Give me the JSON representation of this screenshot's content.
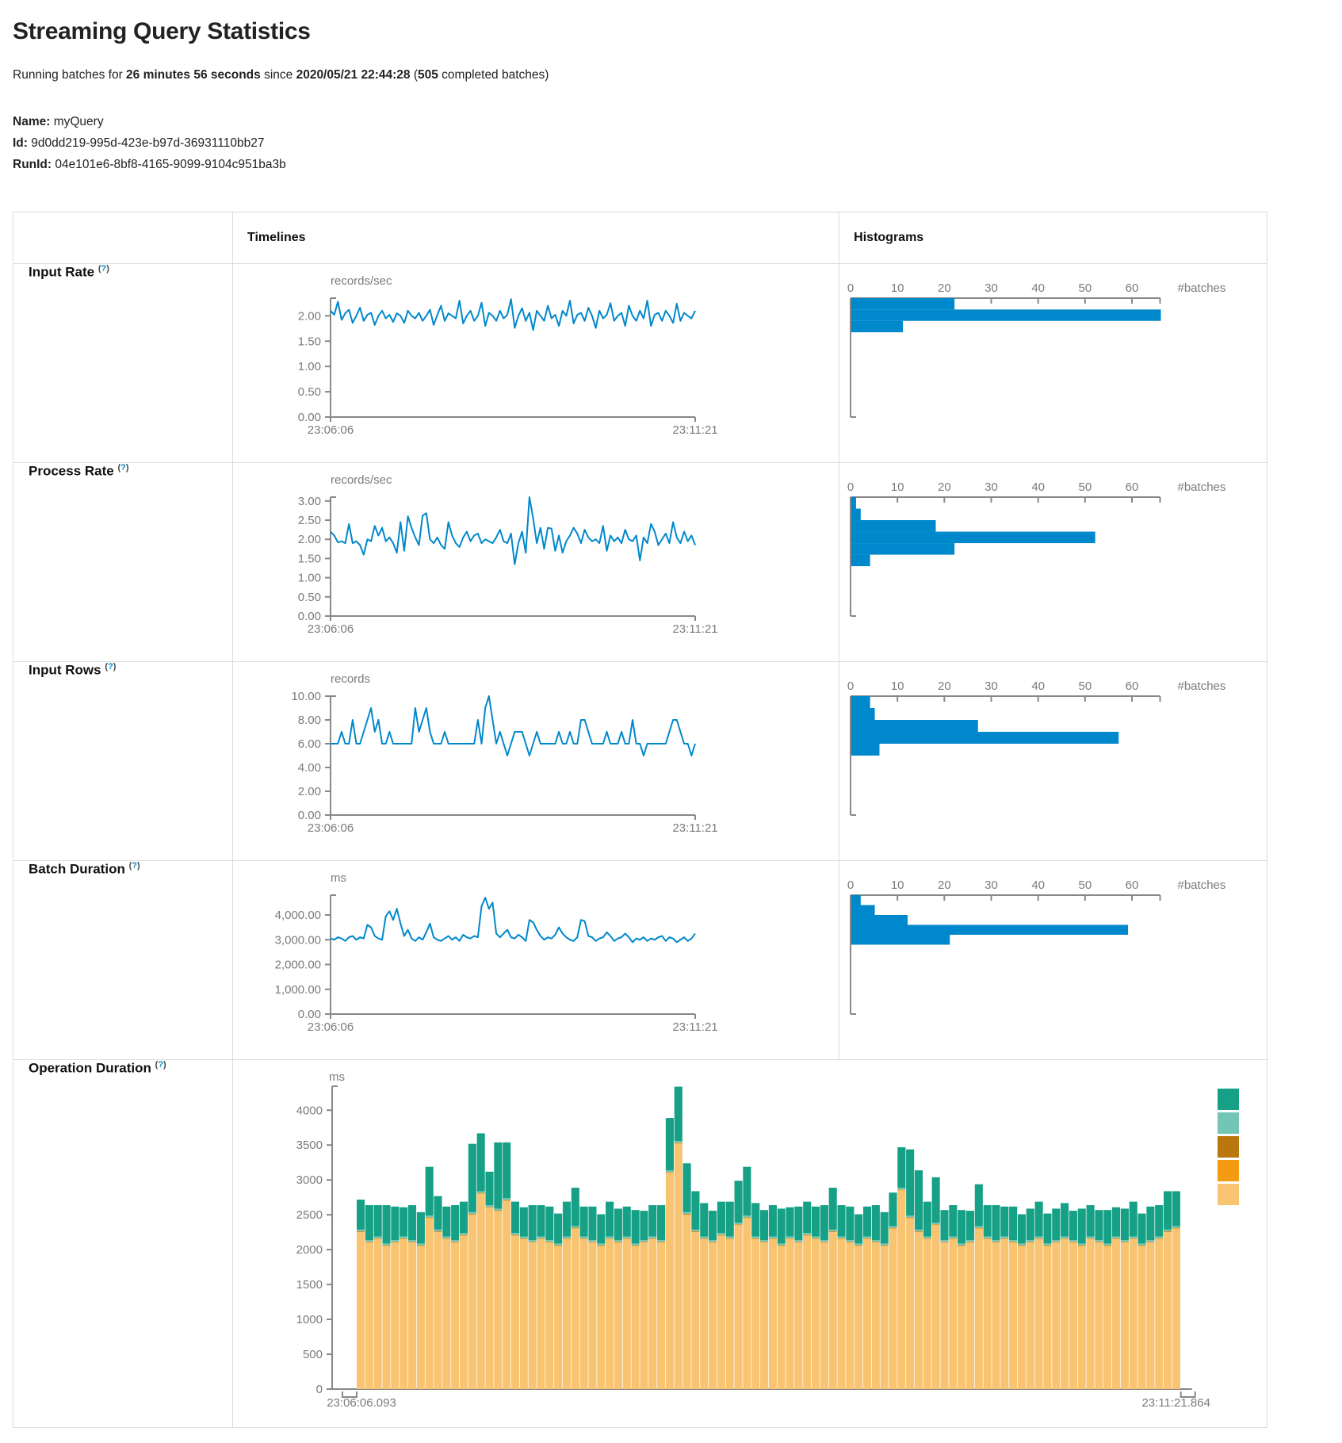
{
  "page": {
    "title": "Streaming Query Statistics",
    "subtitle": {
      "prefix": "Running batches for ",
      "duration": "26 minutes 56 seconds",
      "middle": " since ",
      "start_time": "2020/05/21 22:44:28",
      "paren_open": " (",
      "batch_count": "505",
      "paren_close": " completed batches)"
    },
    "meta": {
      "name_label": "Name:",
      "name_value": "myQuery",
      "id_label": "Id:",
      "id_value": "9d0dd219-995d-423e-b97d-36931110bb27",
      "runid_label": "RunId:",
      "runid_value": "04e101e6-8bf8-4165-9099-9104c951ba3b"
    }
  },
  "table": {
    "headers": {
      "timelines": "Timelines",
      "histograms": "Histograms"
    },
    "help_open": "(",
    "help_mark": "?",
    "help_close": ")",
    "rows": [
      {
        "label": "Input Rate"
      },
      {
        "label": "Process Rate"
      },
      {
        "label": "Input Rows"
      },
      {
        "label": "Batch Duration"
      },
      {
        "label": "Operation Duration"
      }
    ]
  },
  "colors": {
    "accent_blue": "#0088cc",
    "axis_gray": "#888888",
    "label_gray": "#7b7b7b",
    "border_gray": "#dddddd",
    "legend_teal": "#16A085",
    "legend_light_teal": "#73C6B6",
    "legend_brown": "#B9770E",
    "legend_orange": "#F39C12",
    "legend_tan": "#F8C471"
  },
  "chart_data": [
    {
      "row": "Input Rate",
      "timeline": {
        "type": "line",
        "unit": "records/sec",
        "x_start": "23:06:06",
        "x_end": "23:11:21",
        "y_max": 2.35,
        "y_ticks": [
          0,
          0.5,
          1,
          1.5,
          2
        ],
        "y_tick_labels": [
          "0.00",
          "0.50",
          "1.00",
          "1.50",
          "2.00"
        ],
        "values": [
          2.1,
          2.02,
          2.28,
          1.92,
          2.05,
          2.12,
          1.86,
          2.0,
          2.16,
          1.9,
          2.02,
          2.06,
          1.82,
          2.0,
          2.1,
          1.95,
          2.02,
          1.88,
          2.05,
          2.0,
          1.86,
          2.1,
          2.0,
          1.95,
          2.06,
          1.9,
          2.0,
          2.12,
          1.82,
          2.02,
          2.2,
          1.9,
          2.05,
          2.0,
          1.95,
          2.3,
          1.85,
          2.0,
          2.1,
          1.9,
          2.0,
          2.26,
          1.8,
          2.06,
          2.0,
          1.9,
          2.1,
          1.95,
          2.02,
          2.33,
          1.76,
          2.0,
          2.15,
          1.9,
          2.06,
          1.72,
          2.1,
          2.0,
          1.9,
          2.2,
          1.95,
          2.02,
          1.8,
          2.1,
          2.0,
          2.3,
          1.85,
          2.02,
          2.06,
          1.9,
          2.16,
          2.0,
          1.76,
          2.1,
          1.95,
          2.02,
          2.25,
          1.9,
          2.0,
          2.06,
          1.8,
          2.2,
          2.0,
          1.9,
          2.1,
          1.95,
          2.3,
          1.8,
          2.02,
          2.06,
          1.9,
          2.1,
          2.0,
          1.86,
          2.24,
          1.9,
          2.06,
          2.0,
          1.95,
          2.1
        ]
      },
      "histogram": {
        "type": "bar",
        "orientation": "horizontal",
        "x_ticks": [
          0,
          10,
          20,
          30,
          40,
          50,
          60
        ],
        "x_axis_max": 66,
        "x_label": "#batches",
        "bins": [
          {
            "lo": 2.125,
            "hi": 2.35,
            "count": 22
          },
          {
            "lo": 1.9,
            "hi": 2.125,
            "count": 66
          },
          {
            "lo": 1.675,
            "hi": 1.9,
            "count": 11
          }
        ]
      }
    },
    {
      "row": "Process Rate",
      "timeline": {
        "type": "line",
        "unit": "records/sec",
        "x_start": "23:06:06",
        "x_end": "23:11:21",
        "y_max": 3.1,
        "y_ticks": [
          0,
          0.5,
          1,
          1.5,
          2,
          2.5,
          3
        ],
        "y_tick_labels": [
          "0.00",
          "0.50",
          "1.00",
          "1.50",
          "2.00",
          "2.50",
          "3.00"
        ],
        "values": [
          2.2,
          2.1,
          1.92,
          1.95,
          1.9,
          2.4,
          1.9,
          1.95,
          1.85,
          1.6,
          2.0,
          1.95,
          2.35,
          2.1,
          2.3,
          1.95,
          2.05,
          1.9,
          1.65,
          2.45,
          1.7,
          2.6,
          2.3,
          2.05,
          1.85,
          2.62,
          2.68,
          2.0,
          1.9,
          2.05,
          1.85,
          1.75,
          2.45,
          2.1,
          1.9,
          1.8,
          2.05,
          2.2,
          1.95,
          2.1,
          2.15,
          1.9,
          2.0,
          1.95,
          1.9,
          2.05,
          2.25,
          1.95,
          1.9,
          2.15,
          1.35,
          1.9,
          2.2,
          1.65,
          3.1,
          2.55,
          1.9,
          2.3,
          1.75,
          2.3,
          2.28,
          1.7,
          2.1,
          1.65,
          1.95,
          2.1,
          2.3,
          2.15,
          1.9,
          2.25,
          2.05,
          1.95,
          2.0,
          1.9,
          2.35,
          1.7,
          2.1,
          1.95,
          2.05,
          1.9,
          2.25,
          2.0,
          1.95,
          2.1,
          1.45,
          2.05,
          1.9,
          2.4,
          2.2,
          1.85,
          2.0,
          2.15,
          1.9,
          2.45,
          2.05,
          1.9,
          2.2,
          1.95,
          2.1,
          1.85
        ]
      },
      "histogram": {
        "type": "bar",
        "orientation": "horizontal",
        "x_ticks": [
          0,
          10,
          20,
          30,
          40,
          50,
          60
        ],
        "x_axis_max": 66,
        "x_label": "#batches",
        "bins": [
          {
            "lo": 2.8,
            "hi": 3.1,
            "count": 1
          },
          {
            "lo": 2.5,
            "hi": 2.8,
            "count": 2
          },
          {
            "lo": 2.2,
            "hi": 2.5,
            "count": 18
          },
          {
            "lo": 1.9,
            "hi": 2.2,
            "count": 52
          },
          {
            "lo": 1.6,
            "hi": 1.9,
            "count": 22
          },
          {
            "lo": 1.3,
            "hi": 1.6,
            "count": 4
          }
        ]
      }
    },
    {
      "row": "Input Rows",
      "timeline": {
        "type": "line",
        "unit": "records",
        "x_start": "23:06:06",
        "x_end": "23:11:21",
        "y_max": 10,
        "y_ticks": [
          0,
          2,
          4,
          6,
          8,
          10
        ],
        "y_tick_labels": [
          "0.00",
          "2.00",
          "4.00",
          "6.00",
          "8.00",
          "10.00"
        ],
        "values": [
          6,
          6,
          6,
          7,
          6,
          6,
          8,
          6,
          6,
          7,
          8,
          9,
          7,
          8,
          6,
          6,
          7,
          6,
          6,
          6,
          6,
          6,
          6,
          9,
          7,
          8,
          9,
          7,
          6,
          6,
          6,
          7,
          6,
          6,
          6,
          6,
          6,
          6,
          6,
          6,
          8,
          6,
          9,
          10,
          8,
          6,
          7,
          6,
          5,
          6,
          7,
          7,
          7,
          6,
          5,
          6,
          7,
          6,
          6,
          6,
          6,
          6,
          7,
          6,
          6,
          7,
          6,
          6,
          8,
          8,
          7,
          6,
          6,
          6,
          6,
          7,
          6,
          6,
          6,
          7,
          6,
          6,
          8,
          6,
          6,
          5,
          6,
          6,
          6,
          6,
          6,
          6,
          7,
          8,
          8,
          7,
          6,
          6,
          5,
          6
        ]
      },
      "histogram": {
        "type": "bar",
        "orientation": "horizontal",
        "x_ticks": [
          0,
          10,
          20,
          30,
          40,
          50,
          60
        ],
        "x_axis_max": 66,
        "x_label": "#batches",
        "bins": [
          {
            "lo": 9,
            "hi": 10,
            "count": 4
          },
          {
            "lo": 8,
            "hi": 9,
            "count": 5
          },
          {
            "lo": 7,
            "hi": 8,
            "count": 27
          },
          {
            "lo": 6,
            "hi": 7,
            "count": 57
          },
          {
            "lo": 5,
            "hi": 6,
            "count": 6
          }
        ]
      }
    },
    {
      "row": "Batch Duration",
      "timeline": {
        "type": "line",
        "unit": "ms",
        "x_start": "23:06:06",
        "x_end": "23:11:21",
        "y_max": 4800,
        "y_ticks": [
          0,
          1000,
          2000,
          3000,
          4000
        ],
        "y_tick_labels": [
          "0.00",
          "1,000.00",
          "2,000.00",
          "3,000.00",
          "4,000.00"
        ],
        "values": [
          3050,
          3000,
          3100,
          3050,
          2950,
          3100,
          3150,
          3000,
          3100,
          3050,
          3600,
          3500,
          3150,
          3050,
          3000,
          3950,
          4150,
          3800,
          4250,
          3650,
          3150,
          3400,
          3050,
          2950,
          3100,
          3000,
          3300,
          3650,
          3100,
          3000,
          2950,
          3050,
          3150,
          3000,
          3100,
          2950,
          3200,
          3100,
          3050,
          3150,
          3100,
          4350,
          4700,
          4250,
          4500,
          3250,
          3100,
          3250,
          3400,
          3100,
          3050,
          3200,
          3100,
          2950,
          3800,
          3700,
          3400,
          3150,
          3000,
          3100,
          3050,
          3200,
          3500,
          3250,
          3100,
          3000,
          2950,
          3100,
          3800,
          3750,
          3150,
          3100,
          2950,
          3050,
          3100,
          3300,
          3150,
          2950,
          3050,
          3100,
          3250,
          3100,
          2900,
          3050,
          3000,
          3100,
          2950,
          3050,
          3000,
          3100,
          3150,
          2950,
          3100,
          3050,
          2900,
          3000,
          3100,
          2950,
          3050,
          3250
        ]
      },
      "histogram": {
        "type": "bar",
        "orientation": "horizontal",
        "x_ticks": [
          0,
          10,
          20,
          30,
          40,
          50,
          60
        ],
        "x_axis_max": 66,
        "x_label": "#batches",
        "bins": [
          {
            "lo": 4400,
            "hi": 4800,
            "count": 2
          },
          {
            "lo": 4000,
            "hi": 4400,
            "count": 5
          },
          {
            "lo": 3600,
            "hi": 4000,
            "count": 12
          },
          {
            "lo": 3200,
            "hi": 3600,
            "count": 59
          },
          {
            "lo": 2800,
            "hi": 3200,
            "count": 21
          }
        ]
      }
    },
    {
      "row": "Operation Duration",
      "timeline": {
        "type": "stacked-bar",
        "unit": "ms",
        "x_start": "23:06:06.093",
        "x_end": "23:11:21.864",
        "y_max": 4344,
        "y_ticks": [
          0,
          500,
          1000,
          1500,
          2000,
          2500,
          3000,
          3500,
          4000
        ],
        "y_tick_labels": [
          "0",
          "500",
          "1000",
          "1500",
          "2000",
          "2500",
          "3000",
          "3500",
          "4000"
        ],
        "legend_colors": [
          "#16A085",
          "#73C6B6",
          "#B9770E",
          "#F39C12",
          "#F8C471"
        ],
        "series": [
          {
            "color": "#F8C471",
            "values": [
              2250,
              2100,
              2150,
              2050,
              2100,
              2150,
              2100,
              2050,
              2450,
              2250,
              2150,
              2100,
              2200,
              2500,
              2800,
              2600,
              2550,
              2700,
              2200,
              2150,
              2100,
              2150,
              2100,
              2050,
              2150,
              2300,
              2150,
              2100,
              2050,
              2150,
              2100,
              2150,
              2050,
              2100,
              2150,
              2100,
              3100,
              3520,
              2500,
              2250,
              2150,
              2100,
              2200,
              2150,
              2350,
              2450,
              2150,
              2100,
              2150,
              2050,
              2150,
              2100,
              2200,
              2150,
              2100,
              2250,
              2150,
              2100,
              2050,
              2150,
              2100,
              2050,
              2300,
              2850,
              2450,
              2250,
              2150,
              2350,
              2100,
              2150,
              2050,
              2100,
              2300,
              2150,
              2100,
              2150,
              2100,
              2050,
              2100,
              2150,
              2050,
              2100,
              2150,
              2100,
              2050,
              2150,
              2100,
              2050,
              2150,
              2100,
              2150,
              2050,
              2100,
              2150,
              2250,
              2300
            ]
          },
          {
            "color": "#F39C12",
            "constant": 8
          },
          {
            "color": "#B9770E",
            "constant": 5
          },
          {
            "color": "#73C6B6",
            "constant": 25
          },
          {
            "color": "#16A085",
            "values": [
              430,
              500,
              450,
              550,
              480,
              420,
              500,
              450,
              700,
              480,
              430,
              500,
              450,
              980,
              830,
              480,
              950,
              800,
              450,
              420,
              500,
              450,
              480,
              430,
              500,
              550,
              430,
              480,
              420,
              500,
              450,
              430,
              480,
              420,
              450,
              500,
              750,
              780,
              700,
              550,
              480,
              420,
              450,
              500,
              600,
              700,
              480,
              430,
              450,
              500,
              420,
              480,
              450,
              430,
              500,
              600,
              450,
              480,
              420,
              430,
              500,
              450,
              480,
              580,
              950,
              850,
              500,
              650,
              430,
              450,
              480,
              420,
              600,
              450,
              500,
              430,
              480,
              420,
              450,
              500,
              430,
              450,
              480,
              420,
              500,
              450,
              430,
              480,
              420,
              450,
              500,
              430,
              480,
              450,
              550,
              500
            ]
          }
        ]
      }
    }
  ]
}
